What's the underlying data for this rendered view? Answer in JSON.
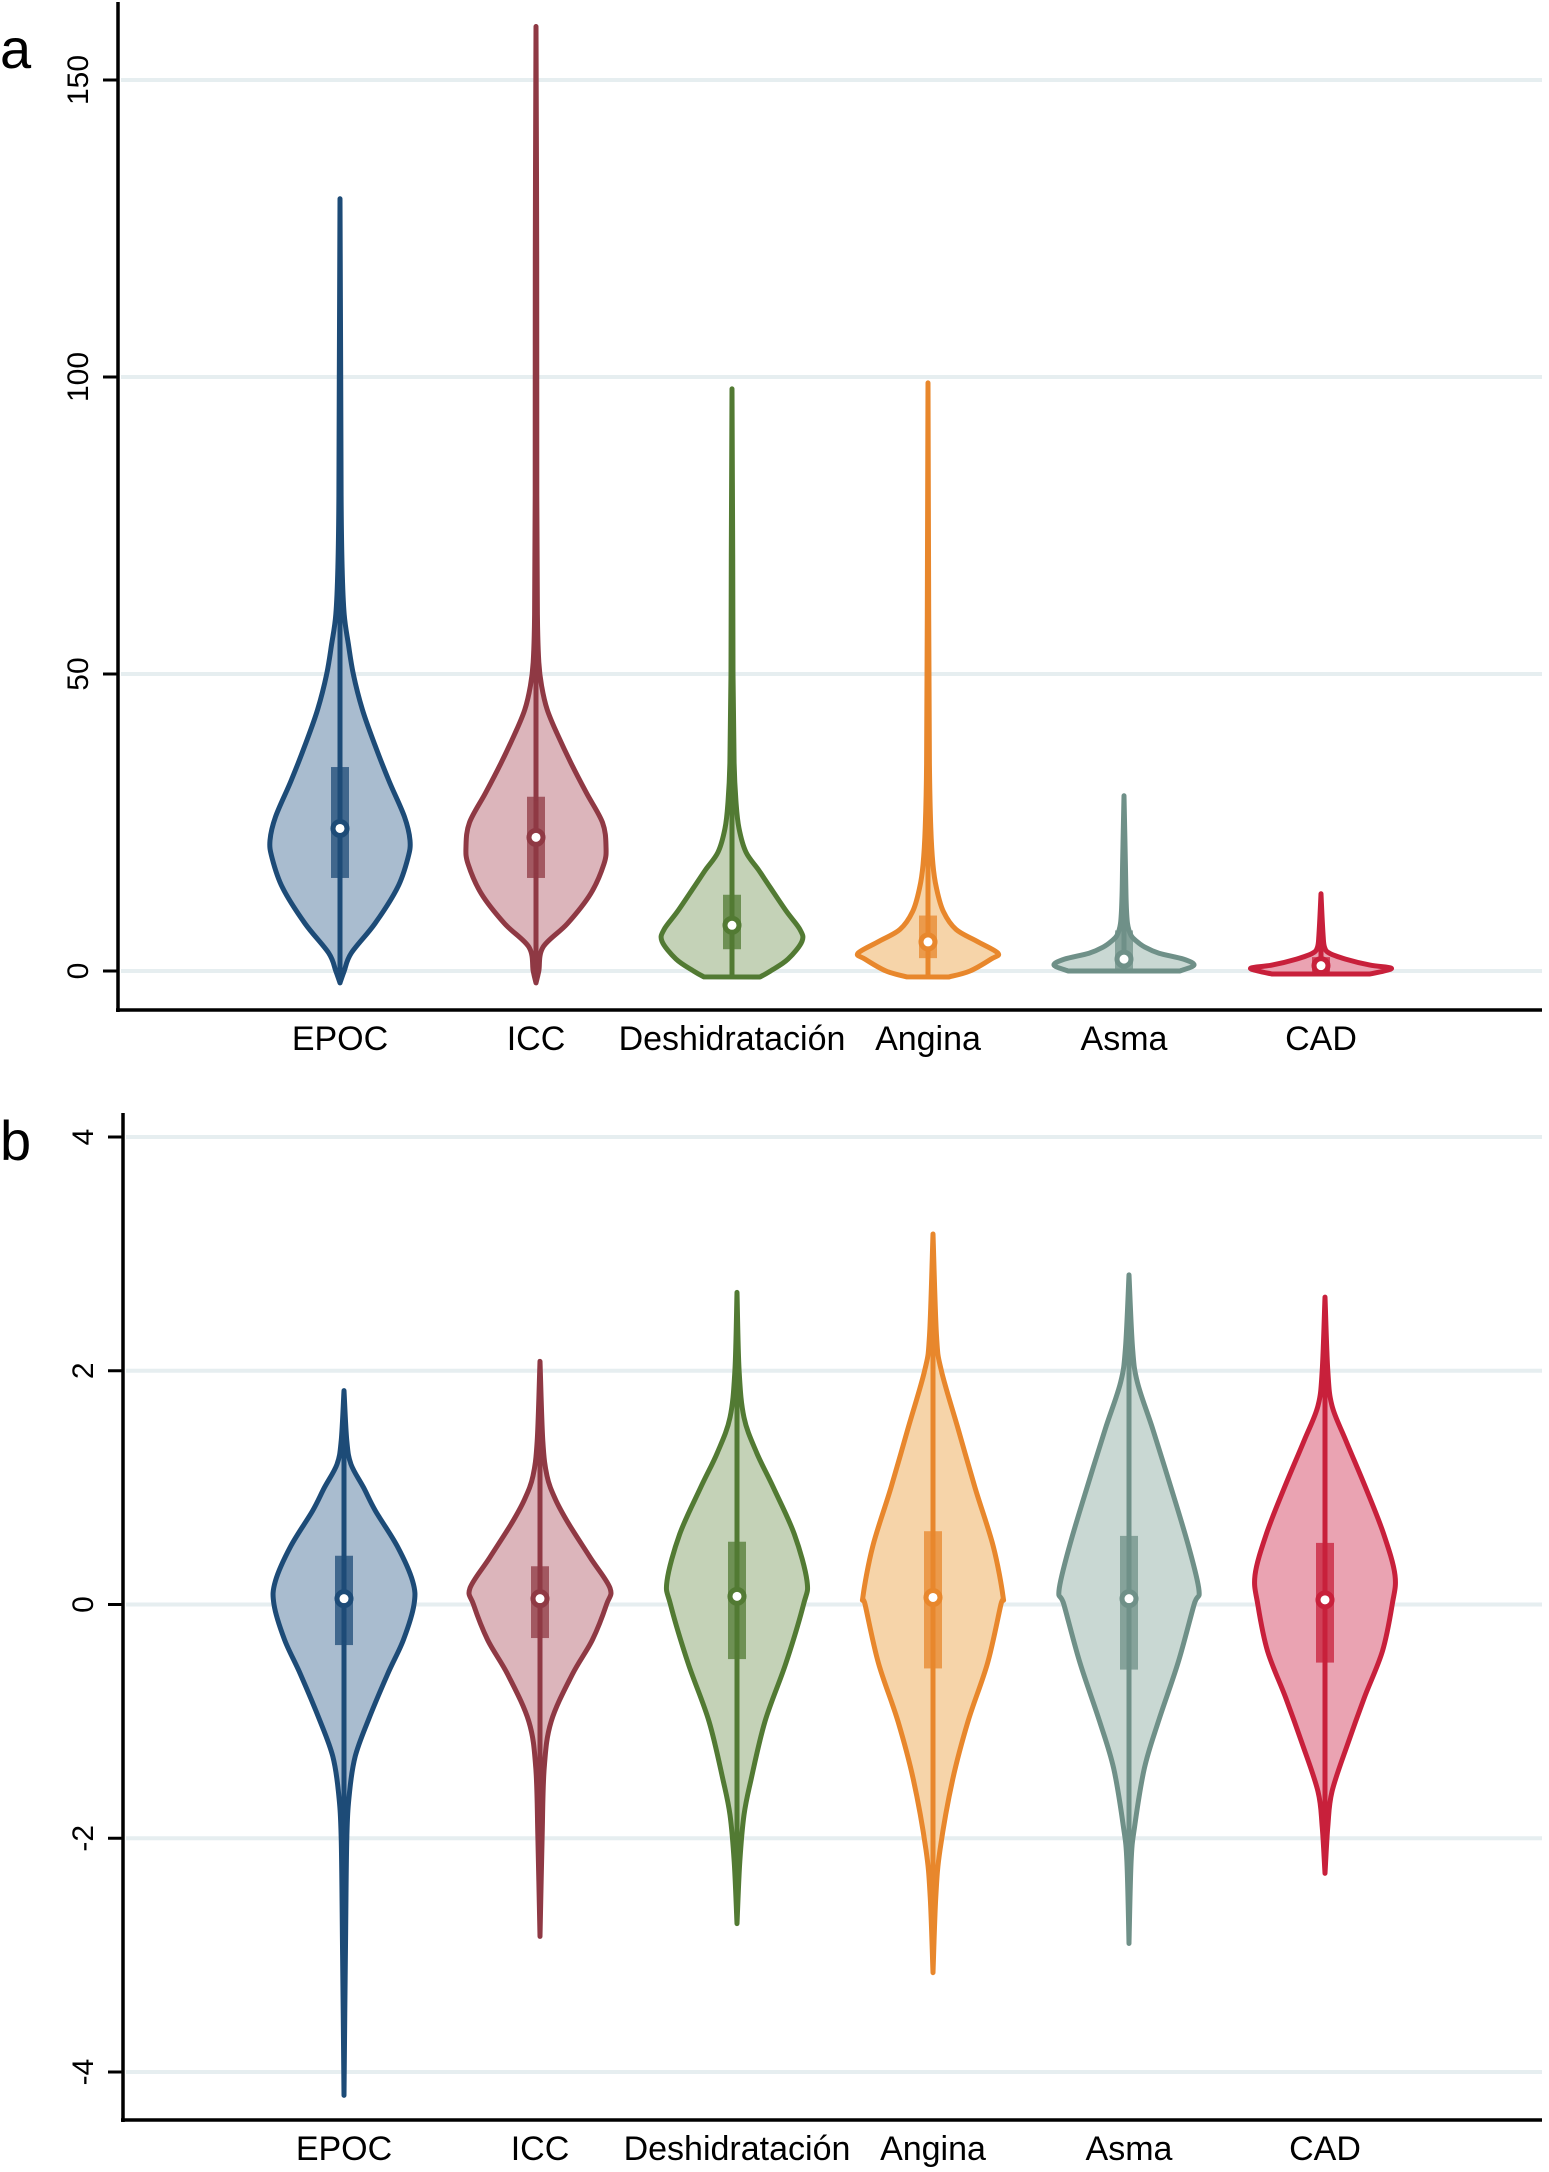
{
  "chart_data": [
    {
      "type": "violin",
      "panel_label": "a",
      "title": "",
      "xlabel": "",
      "ylabel": "",
      "ylim": [
        -4,
        162
      ],
      "yticks": [
        0,
        50,
        100,
        150
      ],
      "ytick_labels": [
        "0",
        "50",
        "100",
        "150"
      ],
      "grid": true,
      "categories": [
        "EPOC",
        "ICC",
        "Deshidratación",
        "Angina",
        "Asma",
        "CAD"
      ],
      "series": [
        {
          "name": "EPOC",
          "color": "#1d4b77",
          "fill": "#a9bccf",
          "min": -2,
          "q1": 16,
          "median": 24,
          "q3": 34,
          "max": 130,
          "density": [
            [
              -2,
              0
            ],
            [
              0,
              0.06
            ],
            [
              3,
              0.16
            ],
            [
              8,
              0.5
            ],
            [
              14,
              0.82
            ],
            [
              19,
              0.97
            ],
            [
              22,
              1.0
            ],
            [
              26,
              0.92
            ],
            [
              32,
              0.7
            ],
            [
              38,
              0.5
            ],
            [
              44,
              0.32
            ],
            [
              50,
              0.19
            ],
            [
              55,
              0.12
            ],
            [
              60,
              0.06
            ],
            [
              68,
              0.03
            ],
            [
              80,
              0.015
            ],
            [
              100,
              0.01
            ],
            [
              130,
              0
            ]
          ]
        },
        {
          "name": "ICC",
          "color": "#8f3944",
          "fill": "#dcb5bb",
          "min": -2,
          "q1": 16,
          "median": 22.5,
          "q3": 29,
          "max": 159,
          "density": [
            [
              -2,
              0
            ],
            [
              0,
              0.04
            ],
            [
              4,
              0.1
            ],
            [
              8,
              0.45
            ],
            [
              13,
              0.78
            ],
            [
              18,
              0.97
            ],
            [
              21,
              1.0
            ],
            [
              25,
              0.95
            ],
            [
              30,
              0.72
            ],
            [
              35,
              0.5
            ],
            [
              40,
              0.3
            ],
            [
              44,
              0.16
            ],
            [
              48,
              0.08
            ],
            [
              52,
              0.04
            ],
            [
              60,
              0.02
            ],
            [
              80,
              0.012
            ],
            [
              120,
              0.01
            ],
            [
              159,
              0
            ]
          ]
        },
        {
          "name": "Deshidratación",
          "color": "#527a33",
          "fill": "#c4d2b7",
          "min": -1,
          "q1": 4,
          "median": 7.7,
          "q3": 12.5,
          "max": 98,
          "density": [
            [
              -1,
              0.4
            ],
            [
              0,
              0.55
            ],
            [
              2,
              0.8
            ],
            [
              5,
              1.0
            ],
            [
              7,
              0.97
            ],
            [
              10,
              0.78
            ],
            [
              14,
              0.55
            ],
            [
              17,
              0.38
            ],
            [
              20,
              0.2
            ],
            [
              24,
              0.1
            ],
            [
              28,
              0.06
            ],
            [
              35,
              0.03
            ],
            [
              50,
              0.015
            ],
            [
              70,
              0.01
            ],
            [
              98,
              0
            ]
          ]
        },
        {
          "name": "Angina",
          "color": "#e8872c",
          "fill": "#f6d4a9",
          "min": -1,
          "q1": 2.5,
          "median": 4.9,
          "q3": 9,
          "max": 99,
          "density": [
            [
              -1,
              0.3
            ],
            [
              0,
              0.6
            ],
            [
              2,
              0.9
            ],
            [
              3,
              1.0
            ],
            [
              5,
              0.7
            ],
            [
              7,
              0.4
            ],
            [
              10,
              0.22
            ],
            [
              14,
              0.12
            ],
            [
              18,
              0.07
            ],
            [
              24,
              0.04
            ],
            [
              35,
              0.02
            ],
            [
              60,
              0.01
            ],
            [
              99,
              0
            ]
          ]
        },
        {
          "name": "Asma",
          "color": "#6f9088",
          "fill": "#c9d8d3",
          "min": 0,
          "q1": 0.5,
          "median": 2,
          "q3": 6.5,
          "max": 29.5,
          "density": [
            [
              0,
              0.8
            ],
            [
              1,
              1.0
            ],
            [
              2,
              0.85
            ],
            [
              3,
              0.5
            ],
            [
              4,
              0.3
            ],
            [
              5,
              0.18
            ],
            [
              6,
              0.1
            ],
            [
              8,
              0.05
            ],
            [
              12,
              0.03
            ],
            [
              18,
              0.02
            ],
            [
              29.5,
              0
            ]
          ]
        },
        {
          "name": "CAD",
          "color": "#c8203b",
          "fill": "#eaa3b2",
          "min": -0.5,
          "q1": 0.2,
          "median": 0.9,
          "q3": 2,
          "max": 13,
          "density": [
            [
              -0.5,
              0.7
            ],
            [
              0,
              0.9
            ],
            [
              0.5,
              1.0
            ],
            [
              1,
              0.7
            ],
            [
              2,
              0.35
            ],
            [
              3,
              0.12
            ],
            [
              4,
              0.05
            ],
            [
              6,
              0.03
            ],
            [
              13,
              0
            ]
          ]
        }
      ]
    },
    {
      "type": "violin",
      "panel_label": "b",
      "title": "",
      "xlabel": "",
      "ylabel": "",
      "ylim": [
        -4.4,
        4.1
      ],
      "yticks": [
        -4,
        -2,
        0,
        2,
        4
      ],
      "ytick_labels": [
        "-4",
        "-2",
        "0",
        "2",
        "4"
      ],
      "grid": true,
      "categories": [
        "EPOC",
        "ICC",
        "Deshidratación",
        "Angina",
        "Asma",
        "CAD"
      ],
      "series": [
        {
          "name": "EPOC",
          "color": "#1d4b77",
          "fill": "#a9bccf",
          "min": -4.2,
          "q1": -0.33,
          "median": 0.05,
          "q3": 0.4,
          "max": 1.83,
          "density": [
            [
              -4.2,
              0
            ],
            [
              -3,
              0.02
            ],
            [
              -2,
              0.04
            ],
            [
              -1.6,
              0.08
            ],
            [
              -1.3,
              0.16
            ],
            [
              -1,
              0.34
            ],
            [
              -0.6,
              0.62
            ],
            [
              -0.3,
              0.85
            ],
            [
              0,
              1.0
            ],
            [
              0.2,
              0.98
            ],
            [
              0.5,
              0.76
            ],
            [
              0.8,
              0.45
            ],
            [
              1.0,
              0.28
            ],
            [
              1.2,
              0.1
            ],
            [
              1.4,
              0.04
            ],
            [
              1.83,
              0
            ]
          ]
        },
        {
          "name": "ICC",
          "color": "#8f3944",
          "fill": "#dcb5bb",
          "min": -2.84,
          "q1": -0.27,
          "median": 0.05,
          "q3": 0.31,
          "max": 2.08,
          "density": [
            [
              -2.84,
              0
            ],
            [
              -2,
              0.03
            ],
            [
              -1.4,
              0.06
            ],
            [
              -1,
              0.16
            ],
            [
              -0.6,
              0.46
            ],
            [
              -0.3,
              0.75
            ],
            [
              0,
              0.95
            ],
            [
              0.14,
              1.0
            ],
            [
              0.4,
              0.72
            ],
            [
              0.7,
              0.4
            ],
            [
              0.9,
              0.22
            ],
            [
              1.1,
              0.1
            ],
            [
              1.4,
              0.04
            ],
            [
              2.08,
              0
            ]
          ]
        },
        {
          "name": "Deshidratación",
          "color": "#527a33",
          "fill": "#c4d2b7",
          "min": -2.73,
          "q1": -0.45,
          "median": 0.07,
          "q3": 0.52,
          "max": 2.67,
          "density": [
            [
              -2.73,
              0
            ],
            [
              -2.2,
              0.04
            ],
            [
              -1.8,
              0.1
            ],
            [
              -1.5,
              0.2
            ],
            [
              -1,
              0.4
            ],
            [
              -0.5,
              0.7
            ],
            [
              0,
              0.95
            ],
            [
              0.2,
              1.0
            ],
            [
              0.6,
              0.82
            ],
            [
              1.0,
              0.52
            ],
            [
              1.3,
              0.28
            ],
            [
              1.6,
              0.1
            ],
            [
              2.0,
              0.03
            ],
            [
              2.67,
              0
            ]
          ]
        },
        {
          "name": "Angina",
          "color": "#e8872c",
          "fill": "#f6d4a9",
          "min": -3.15,
          "q1": -0.53,
          "median": 0.06,
          "q3": 0.61,
          "max": 3.17,
          "density": [
            [
              -3.15,
              0
            ],
            [
              -2.5,
              0.04
            ],
            [
              -2.1,
              0.1
            ],
            [
              -1.5,
              0.28
            ],
            [
              -1,
              0.5
            ],
            [
              -0.5,
              0.78
            ],
            [
              0,
              0.97
            ],
            [
              0.07,
              1.0
            ],
            [
              0.5,
              0.86
            ],
            [
              1.0,
              0.6
            ],
            [
              1.5,
              0.36
            ],
            [
              2.0,
              0.12
            ],
            [
              2.3,
              0.05
            ],
            [
              3.17,
              0
            ]
          ]
        },
        {
          "name": "Asma",
          "color": "#6f9088",
          "fill": "#c9d8d3",
          "min": -2.9,
          "q1": -0.54,
          "median": 0.05,
          "q3": 0.57,
          "max": 2.82,
          "density": [
            [
              -2.9,
              0
            ],
            [
              -2.2,
              0.03
            ],
            [
              -1.9,
              0.08
            ],
            [
              -1.4,
              0.22
            ],
            [
              -1,
              0.42
            ],
            [
              -0.5,
              0.7
            ],
            [
              0,
              0.93
            ],
            [
              0.12,
              1.0
            ],
            [
              0.5,
              0.85
            ],
            [
              1.0,
              0.6
            ],
            [
              1.5,
              0.34
            ],
            [
              1.9,
              0.12
            ],
            [
              2.2,
              0.05
            ],
            [
              2.82,
              0
            ]
          ]
        },
        {
          "name": "CAD",
          "color": "#c8203b",
          "fill": "#eaa3b2",
          "min": -2.3,
          "q1": -0.48,
          "median": 0.04,
          "q3": 0.51,
          "max": 2.63,
          "density": [
            [
              -2.3,
              0
            ],
            [
              -1.9,
              0.04
            ],
            [
              -1.6,
              0.1
            ],
            [
              -1.2,
              0.32
            ],
            [
              -0.8,
              0.56
            ],
            [
              -0.4,
              0.82
            ],
            [
              0,
              0.96
            ],
            [
              0.25,
              1.0
            ],
            [
              0.6,
              0.84
            ],
            [
              1.0,
              0.58
            ],
            [
              1.4,
              0.3
            ],
            [
              1.7,
              0.1
            ],
            [
              2.0,
              0.04
            ],
            [
              2.63,
              0
            ]
          ]
        }
      ]
    }
  ]
}
